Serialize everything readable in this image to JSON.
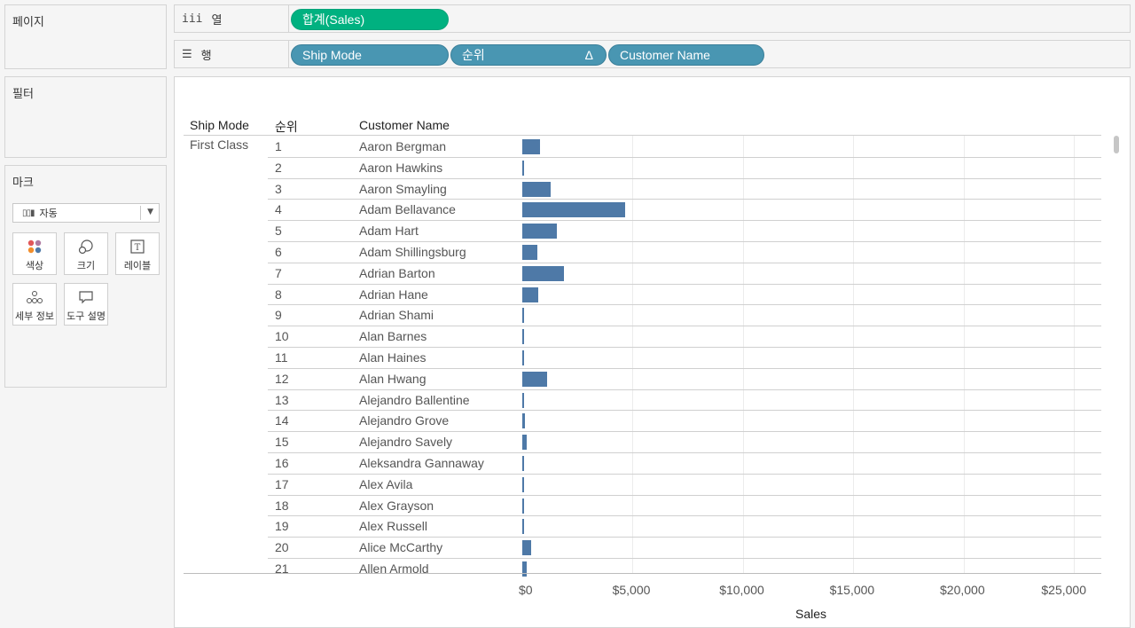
{
  "panels": {
    "pages": "페이지",
    "filters": "필터",
    "marks": "마크"
  },
  "marks": {
    "type": "자동",
    "buttons": [
      "색상",
      "크기",
      "레이블",
      "세부 정보",
      "도구 설명"
    ]
  },
  "shelves": {
    "columns_label": "열",
    "rows_label": "행",
    "column_pills": [
      "합계(Sales)"
    ],
    "row_pills": [
      "Ship Mode",
      "순위",
      "Customer Name"
    ],
    "sort_indicator": "Δ"
  },
  "table": {
    "headers": [
      "Ship Mode",
      "순위",
      "Customer Name"
    ],
    "ship_mode": "First Class"
  },
  "chart_data": {
    "type": "bar",
    "xlabel": "Sales",
    "xlim": [
      0,
      25000
    ],
    "x_ticks": [
      "$0",
      "$5,000",
      "$10,000",
      "$15,000",
      "$20,000",
      "$25,000"
    ],
    "categories": [
      "Aaron Bergman",
      "Aaron Hawkins",
      "Aaron Smayling",
      "Adam Bellavance",
      "Adam Hart",
      "Adam Shillingsburg",
      "Adrian Barton",
      "Adrian Hane",
      "Adrian Shami",
      "Alan Barnes",
      "Alan Haines",
      "Alan Hwang",
      "Alejandro Ballentine",
      "Alejandro Grove",
      "Alejandro Savely",
      "Aleksandra Gannaway",
      "Alex Avila",
      "Alex Grayson",
      "Alex Russell",
      "Alice McCarthy",
      "Allen Armold"
    ],
    "ranks": [
      "1",
      "2",
      "3",
      "4",
      "5",
      "6",
      "7",
      "8",
      "9",
      "10",
      "11",
      "12",
      "13",
      "14",
      "15",
      "16",
      "17",
      "18",
      "19",
      "20",
      "21"
    ],
    "values": [
      820,
      80,
      1300,
      4650,
      1550,
      680,
      1900,
      730,
      20,
      70,
      25,
      1120,
      15,
      110,
      210,
      80,
      25,
      25,
      25,
      410,
      210
    ]
  }
}
